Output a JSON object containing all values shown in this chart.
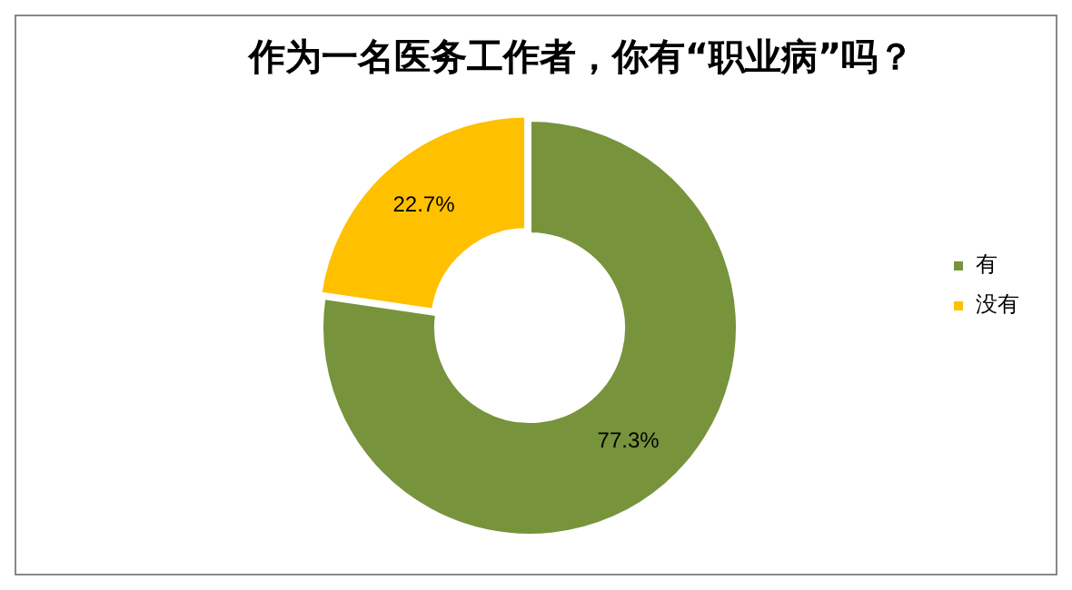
{
  "chart_data": {
    "type": "donut",
    "title": "作为一名医务工作者，你有“职业病”吗？",
    "categories": [
      "有",
      "没有"
    ],
    "values": [
      77.3,
      22.7
    ],
    "colors": [
      "#77933c",
      "#ffc000"
    ],
    "value_labels": [
      "77.3%",
      "22.7%"
    ],
    "legend": "right"
  }
}
